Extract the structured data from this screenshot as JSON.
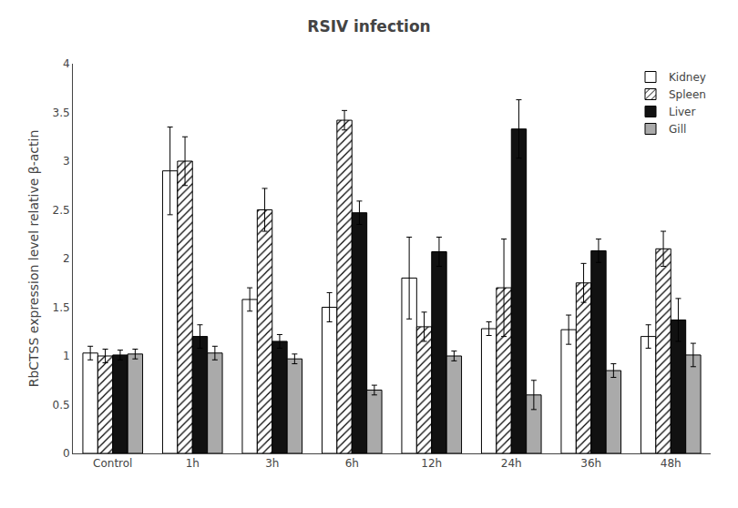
{
  "chart_data": {
    "type": "bar",
    "title": "RSIV infection",
    "ylabel": "RbCTSS expression level relative β-actin",
    "categories": [
      "Control",
      "1h",
      "3h",
      "6h",
      "12h",
      "24h",
      "36h",
      "48h"
    ],
    "series": [
      {
        "name": "Kidney",
        "color": "#ffffff",
        "values": [
          1.03,
          2.9,
          1.58,
          1.5,
          1.8,
          1.28,
          1.27,
          1.2
        ],
        "errors": [
          0.07,
          0.45,
          0.12,
          0.15,
          0.42,
          0.07,
          0.15,
          0.12
        ]
      },
      {
        "name": "Spleen",
        "color": "#ffffff",
        "marker": "hatch",
        "values": [
          1.0,
          3.0,
          2.5,
          3.42,
          1.3,
          1.7,
          1.75,
          2.1
        ],
        "errors": [
          0.07,
          0.25,
          0.22,
          0.1,
          0.15,
          0.5,
          0.2,
          0.18
        ]
      },
      {
        "name": "Liver",
        "color": "#111111",
        "values": [
          1.01,
          1.2,
          1.15,
          2.47,
          2.07,
          3.33,
          2.08,
          1.37
        ],
        "errors": [
          0.05,
          0.12,
          0.07,
          0.12,
          0.15,
          0.3,
          0.12,
          0.22
        ]
      },
      {
        "name": "Gill",
        "color": "#aaaaaa",
        "values": [
          1.02,
          1.03,
          0.97,
          0.65,
          1.0,
          0.6,
          0.85,
          1.01
        ],
        "errors": [
          0.05,
          0.07,
          0.05,
          0.05,
          0.05,
          0.15,
          0.07,
          0.12
        ]
      }
    ],
    "ylim": [
      0,
      4
    ],
    "yticks": [
      0,
      0.5,
      1,
      1.5,
      2,
      2.5,
      3,
      3.5,
      4
    ],
    "grid": false,
    "legend": "upper right"
  }
}
